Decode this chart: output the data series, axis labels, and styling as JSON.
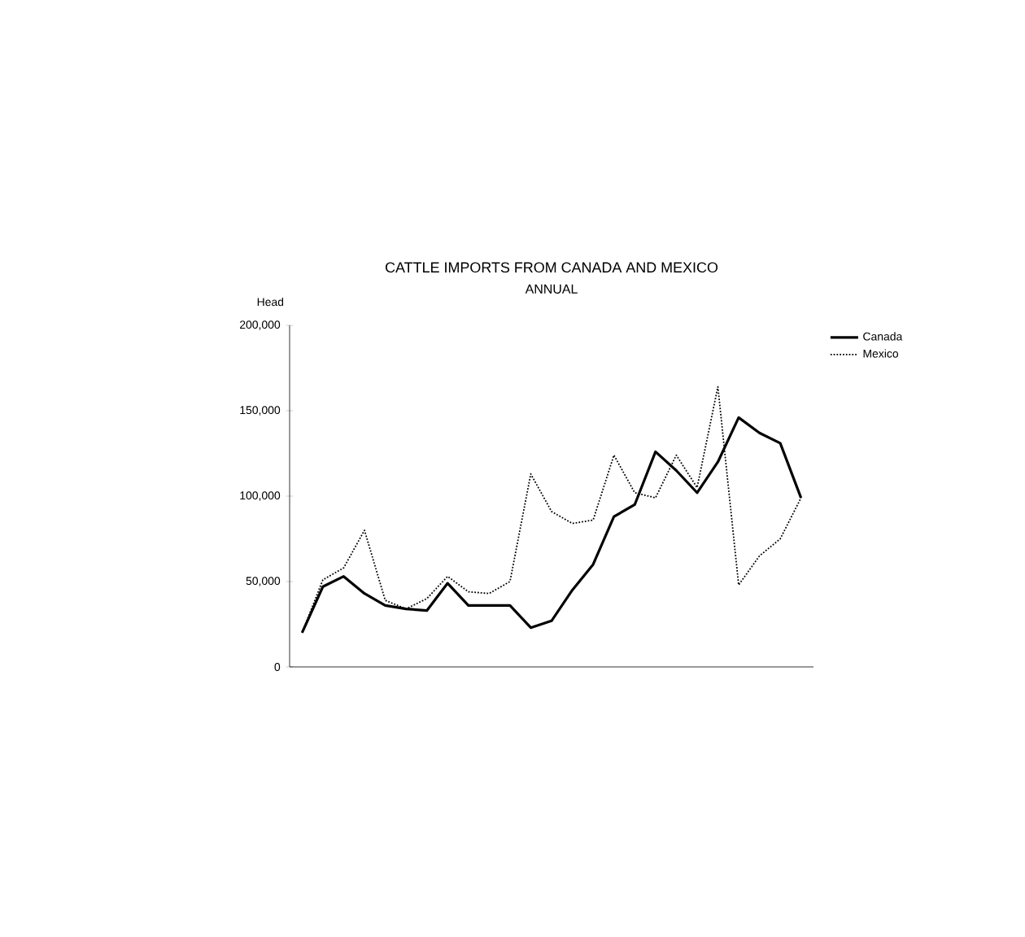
{
  "chart_data": {
    "type": "line",
    "title": "CATTLE IMPORTS FROM CANADA AND MEXICO",
    "subtitle": "ANNUAL",
    "ylabel": "Head",
    "categories": [
      null,
      null,
      null,
      null,
      null,
      null,
      null,
      null,
      null,
      null,
      null,
      null,
      null,
      null,
      null,
      null,
      null,
      null,
      null,
      null,
      null,
      null,
      null,
      null,
      null
    ],
    "series": [
      {
        "name": "Canada",
        "color": "#000000",
        "line_style": "solid",
        "values": [
          20000,
          47000,
          53000,
          43000,
          36000,
          34000,
          33000,
          49000,
          36000,
          36000,
          36000,
          23000,
          27000,
          45000,
          60000,
          88000,
          95000,
          126000,
          115000,
          102000,
          120000,
          146000,
          137000,
          131000,
          99000
        ]
      },
      {
        "name": "Mexico",
        "color": "#000000",
        "line_style": "dotted",
        "values": [
          20000,
          51000,
          58000,
          80000,
          39000,
          34000,
          40000,
          53000,
          44000,
          43000,
          50000,
          113000,
          91000,
          84000,
          86000,
          124000,
          102000,
          99000,
          124000,
          105000,
          164000,
          48000,
          65000,
          75000,
          99000
        ]
      }
    ],
    "ylim": [
      0,
      200000
    ],
    "yticks": [
      0,
      {
        "value": 50000,
        "label": "50,000"
      },
      {
        "value": 100000,
        "label": "100,000"
      },
      {
        "value": 150000,
        "label": "150,000"
      },
      {
        "value": 200000,
        "label": "200,000"
      }
    ],
    "tick_labels": "y",
    "legend": "right",
    "marker": "none"
  }
}
